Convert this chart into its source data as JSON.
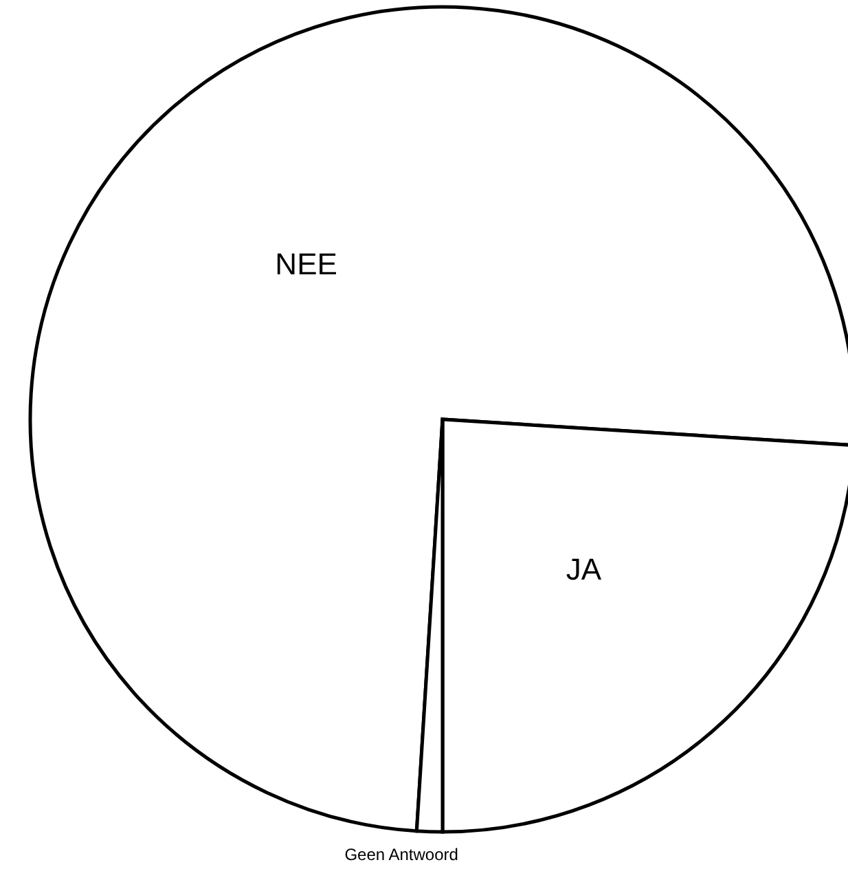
{
  "chart_data": {
    "type": "pie",
    "categories": [
      "NEE",
      "JA",
      "Geen Antwoord"
    ],
    "values": [
      75,
      24,
      1
    ],
    "colors": [
      "#ffffff",
      "#ffffff",
      "#ffffff"
    ]
  }
}
